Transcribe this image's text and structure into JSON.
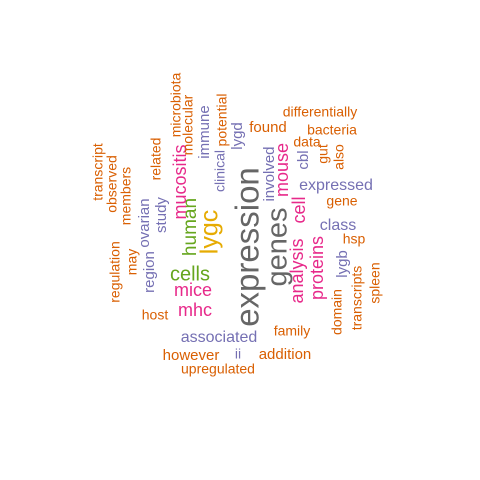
{
  "palette": {
    "orange": "#D95F02",
    "purple": "#7570B3",
    "magenta": "#E7298A",
    "green": "#66A61E",
    "gold": "#E6AB02",
    "gray": "#666666"
  },
  "words": [
    {
      "text": "expression",
      "color": "gray"
    },
    {
      "text": "genes",
      "color": "gray"
    },
    {
      "text": "lygc",
      "color": "gold"
    },
    {
      "text": "human",
      "color": "green"
    },
    {
      "text": "cells",
      "color": "green"
    },
    {
      "text": "mucositis",
      "color": "magenta"
    },
    {
      "text": "mice",
      "color": "magenta"
    },
    {
      "text": "mhc",
      "color": "magenta"
    },
    {
      "text": "analysis",
      "color": "magenta"
    },
    {
      "text": "cell",
      "color": "magenta"
    },
    {
      "text": "mouse",
      "color": "magenta"
    },
    {
      "text": "proteins",
      "color": "magenta"
    },
    {
      "text": "expressed",
      "color": "purple"
    },
    {
      "text": "class",
      "color": "purple"
    },
    {
      "text": "associated",
      "color": "purple"
    },
    {
      "text": "involved",
      "color": "purple"
    },
    {
      "text": "lygd",
      "color": "purple"
    },
    {
      "text": "immune",
      "color": "purple"
    },
    {
      "text": "study",
      "color": "purple"
    },
    {
      "text": "ovarian",
      "color": "purple"
    },
    {
      "text": "region",
      "color": "purple"
    },
    {
      "text": "cbl",
      "color": "purple"
    },
    {
      "text": "lygb",
      "color": "purple"
    },
    {
      "text": "clinical",
      "color": "purple"
    },
    {
      "text": "ii",
      "color": "purple"
    },
    {
      "text": "potential",
      "color": "orange"
    },
    {
      "text": "microbiota",
      "color": "orange"
    },
    {
      "text": "molecular",
      "color": "orange"
    },
    {
      "text": "related",
      "color": "orange"
    },
    {
      "text": "members",
      "color": "orange"
    },
    {
      "text": "observed",
      "color": "orange"
    },
    {
      "text": "transcript",
      "color": "orange"
    },
    {
      "text": "regulation",
      "color": "orange"
    },
    {
      "text": "may",
      "color": "orange"
    },
    {
      "text": "host",
      "color": "orange"
    },
    {
      "text": "however",
      "color": "orange"
    },
    {
      "text": "upregulated",
      "color": "orange"
    },
    {
      "text": "addition",
      "color": "orange"
    },
    {
      "text": "family",
      "color": "orange"
    },
    {
      "text": "domain",
      "color": "orange"
    },
    {
      "text": "transcripts",
      "color": "orange"
    },
    {
      "text": "spleen",
      "color": "orange"
    },
    {
      "text": "hsp",
      "color": "orange"
    },
    {
      "text": "gene",
      "color": "orange"
    },
    {
      "text": "also",
      "color": "orange"
    },
    {
      "text": "gut",
      "color": "orange"
    },
    {
      "text": "data",
      "color": "orange"
    },
    {
      "text": "bacteria",
      "color": "orange"
    },
    {
      "text": "found",
      "color": "orange"
    },
    {
      "text": "differentially",
      "color": "orange"
    }
  ]
}
